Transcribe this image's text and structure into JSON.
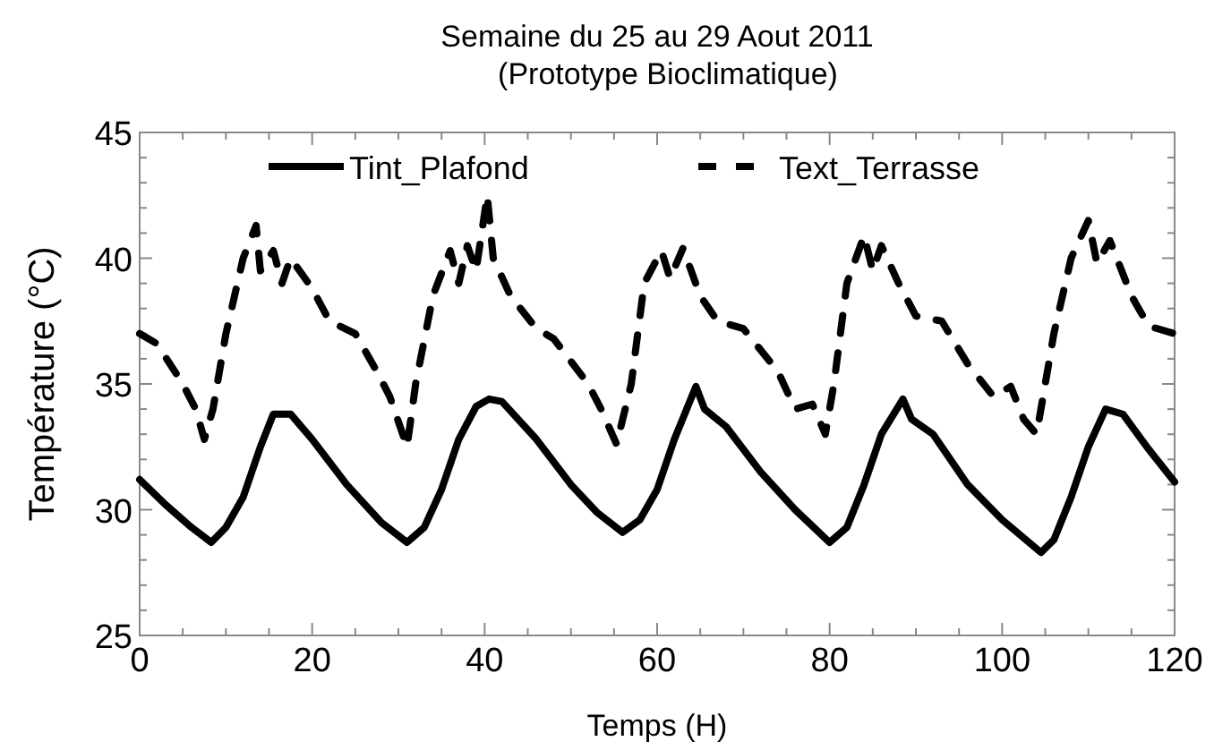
{
  "chart_data": {
    "type": "line",
    "title": "Semaine du 25 au 29 Aout 2011",
    "subtitle": "(Prototype Bioclimatique)",
    "xlabel": "Temps (H)",
    "ylabel": "Température (°C)",
    "xlim": [
      0,
      120
    ],
    "ylim": [
      25,
      45
    ],
    "xticks": [
      0,
      {
        "value": 5,
        "label": null
      },
      20,
      {
        "value": 10,
        "label": null
      },
      {
        "value": 15,
        "label": null
      },
      40,
      {
        "value": 25,
        "label": null
      },
      {
        "value": 30,
        "label": null
      },
      {
        "value": 35,
        "label": null
      },
      60,
      {
        "value": 45,
        "label": null
      },
      {
        "value": 50,
        "label": null
      },
      {
        "value": 55,
        "label": null
      },
      80,
      {
        "value": 65,
        "label": null
      },
      {
        "value": 70,
        "label": null
      },
      {
        "value": 75,
        "label": null
      },
      100,
      {
        "value": 85,
        "label": null
      },
      {
        "value": 90,
        "label": null
      },
      {
        "value": 95,
        "label": null
      },
      120,
      {
        "value": 105,
        "label": null
      },
      {
        "value": 110,
        "label": null
      },
      {
        "value": 115,
        "label": null
      }
    ],
    "yticks": [
      25,
      30,
      35,
      40,
      45,
      {
        "value": 26,
        "label": null
      },
      {
        "value": 27,
        "label": null
      },
      {
        "value": 28,
        "label": null
      },
      {
        "value": 29,
        "label": null
      },
      {
        "value": 31,
        "label": null
      },
      {
        "value": 32,
        "label": null
      },
      {
        "value": 33,
        "label": null
      },
      {
        "value": 34,
        "label": null
      },
      {
        "value": 36,
        "label": null
      },
      {
        "value": 37,
        "label": null
      },
      {
        "value": 38,
        "label": null
      },
      {
        "value": 39,
        "label": null
      },
      {
        "value": 41,
        "label": null
      },
      {
        "value": 42,
        "label": null
      },
      {
        "value": 43,
        "label": null
      },
      {
        "value": 44,
        "label": null
      }
    ],
    "grid": false,
    "legend": "top",
    "marker": "none",
    "series": [
      {
        "name": "Tint_Plafond",
        "color": "#000000",
        "line_style": "solid",
        "x": [
          0,
          3,
          6,
          8.3,
          10,
          12,
          14,
          15.5,
          17.5,
          20,
          24,
          28,
          31,
          33,
          35,
          37,
          39,
          40.5,
          42,
          46,
          50,
          53,
          56,
          58,
          60,
          62,
          64.5,
          65.5,
          68,
          72,
          76,
          80,
          82,
          84,
          86,
          88.5,
          89.5,
          92,
          96,
          100,
          104.5,
          106,
          108,
          110,
          112,
          114,
          117,
          120
        ],
        "values": [
          31.2,
          30.2,
          29.3,
          28.7,
          29.3,
          30.5,
          32.5,
          33.8,
          33.8,
          32.8,
          31,
          29.5,
          28.7,
          29.3,
          30.8,
          32.8,
          34.1,
          34.4,
          34.3,
          32.8,
          31,
          29.9,
          29.1,
          29.6,
          30.8,
          32.8,
          34.9,
          34,
          33.3,
          31.5,
          30,
          28.7,
          29.3,
          31,
          33,
          34.4,
          33.6,
          33,
          31,
          29.6,
          28.3,
          28.8,
          30.5,
          32.5,
          34,
          33.8,
          32.4,
          31.1
        ]
      },
      {
        "name": "Text_Terrasse",
        "color": "#000000",
        "line_style": "dashed",
        "x": [
          0,
          2,
          5,
          6.5,
          7.5,
          8.5,
          10,
          12,
          13.5,
          14,
          15.5,
          16.5,
          17.5,
          20,
          22,
          25,
          27.5,
          29,
          30,
          31,
          32,
          34,
          36,
          37,
          38,
          39,
          40.3,
          41,
          43,
          46,
          48,
          52,
          53.5,
          55.3,
          57,
          58.5,
          60.5,
          61.5,
          63,
          65,
          67,
          70,
          74,
          76,
          78,
          79.5,
          80.5,
          82,
          84,
          85,
          86,
          88,
          90,
          93,
          96,
          99,
          101,
          102.5,
          104,
          106,
          108,
          110,
          111,
          112.5,
          115,
          117,
          120
        ],
        "values": [
          37,
          36.6,
          35,
          34,
          32.8,
          34,
          37,
          40,
          41.3,
          39.5,
          40.3,
          39,
          40,
          38.8,
          37.5,
          37,
          35.5,
          34.5,
          33.5,
          32.5,
          35,
          38.5,
          40.3,
          39,
          40.5,
          39.5,
          42.5,
          40,
          38.5,
          37.2,
          36.8,
          35,
          34,
          32.6,
          35,
          39,
          40.3,
          39.2,
          40.4,
          38.5,
          37.5,
          37.2,
          35.5,
          34,
          34.2,
          33,
          35,
          39,
          40.9,
          39.5,
          40.5,
          39,
          37.7,
          37.5,
          35.8,
          34.5,
          34.9,
          33.6,
          33,
          37,
          40,
          41.5,
          39.8,
          40.7,
          38.5,
          37.3,
          37
        ]
      }
    ]
  }
}
